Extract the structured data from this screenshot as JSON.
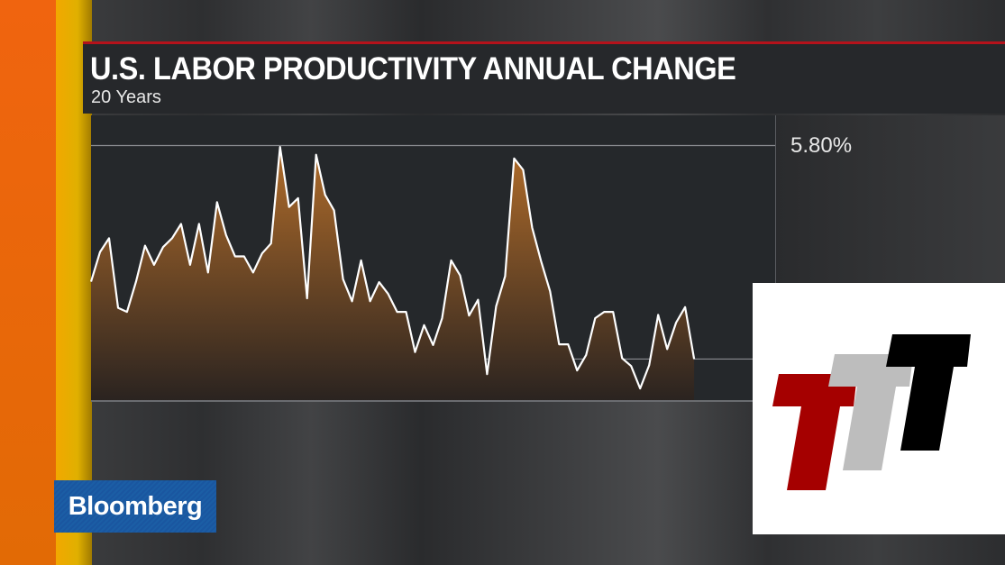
{
  "header": {
    "title": "U.S. LABOR PRODUCTIVITY ANNUAL CHANGE",
    "subtitle": "20 Years"
  },
  "branding": {
    "network": "Bloomberg",
    "network_color": "#1b5ea5",
    "overlay_logo": "TTT",
    "overlay_logo_colors": [
      "#a50000",
      "#bdbdbd",
      "#000000"
    ]
  },
  "colors": {
    "accent_red": "#b5121b",
    "stripe_orange": "#f0640f",
    "stripe_yellow": "#f2a800",
    "line": "#ffffff",
    "fill_top": "#a8672a",
    "fill_bottom": "#2a2320"
  },
  "chart_data": {
    "type": "area",
    "title": "U.S. LABOR PRODUCTIVITY ANNUAL CHANGE",
    "subtitle": "20 Years",
    "xlabel": "",
    "ylabel": "",
    "y_tick_labels": [
      "5.80%"
    ],
    "gridlines": [
      5.8,
      0
    ],
    "ylim": [
      -1.14,
      6.62
    ],
    "xlim": [
      0,
      76
    ],
    "grid": true,
    "values": [
      2.1,
      2.91,
      3.28,
      1.39,
      1.28,
      2.1,
      3.08,
      2.56,
      3.04,
      3.28,
      3.67,
      2.56,
      3.67,
      2.35,
      4.26,
      3.37,
      2.79,
      2.79,
      2.35,
      2.87,
      3.14,
      5.76,
      4.13,
      4.37,
      1.65,
      5.55,
      4.46,
      4.04,
      2.17,
      1.57,
      2.68,
      1.57,
      2.09,
      1.77,
      1.28,
      1.28,
      0.19,
      0.92,
      0.38,
      1.11,
      2.68,
      2.27,
      1.18,
      1.61,
      -0.41,
      1.43,
      2.25,
      5.45,
      5.14,
      3.57,
      2.66,
      1.84,
      0.4,
      0.4,
      -0.31,
      0.11,
      1.11,
      1.28,
      1.28,
      0.02,
      -0.19,
      -0.8,
      -0.17,
      1.2,
      0.27,
      0.99,
      1.41,
      0.0
    ]
  }
}
